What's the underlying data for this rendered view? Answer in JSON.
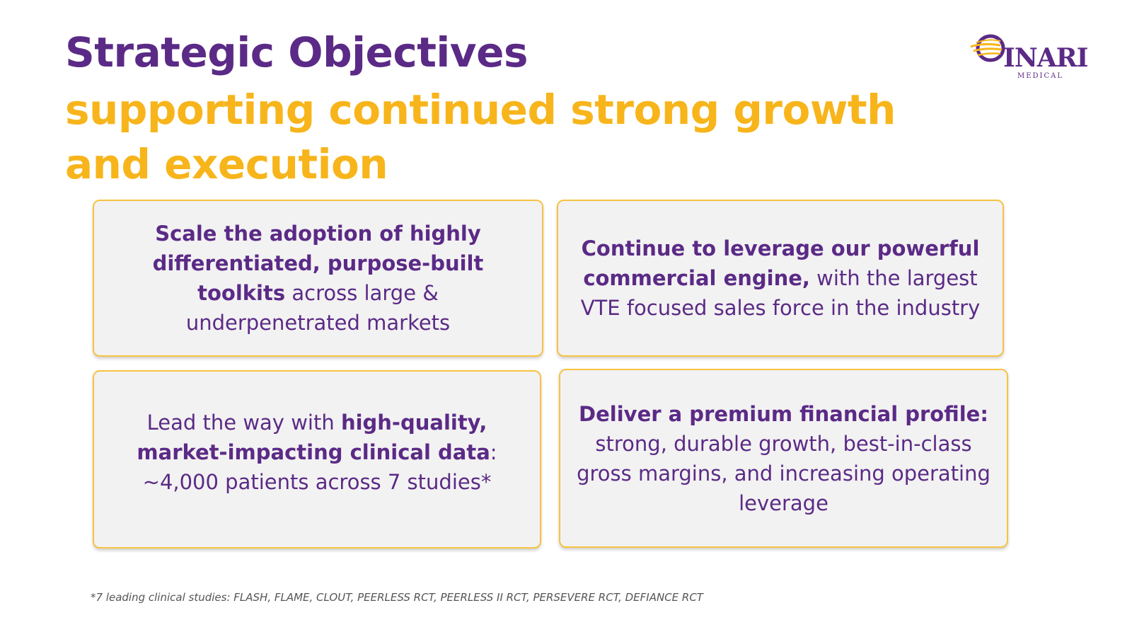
{
  "slide": {
    "title": "Strategic Objectives",
    "subtitle": "supporting  continued strong growth and execution",
    "logo": {
      "word": "INARI",
      "sub": "MEDICAL",
      "icon": "inari-logo-icon"
    },
    "colors": {
      "purple": "#5b2a86",
      "gold": "#f7b51b",
      "card_bg": "#f2f2f2"
    }
  },
  "cards": [
    {
      "bold": "Scale the adoption of highly differentiated, purpose-built toolkits",
      "regular": " across large & underpenetrated markets"
    },
    {
      "bold": "Continue to leverage our powerful commercial engine,",
      "regular": " with the largest VTE focused sales force in the industry"
    },
    {
      "regular_pre": "Lead the way with ",
      "bold": "high-quality, market-impacting clinical data",
      "regular": ": ~4,000 patients across 7 studies*"
    },
    {
      "bold": "Deliver a premium financial profile:",
      "regular": " strong, durable growth, best-in-class gross margins, and increasing operating leverage"
    }
  ],
  "footnote": "*7 leading clinical studies: FLASH, FLAME, CLOUT, PEERLESS RCT, PEERLESS II RCT, PERSEVERE RCT, DEFIANCE RCT"
}
